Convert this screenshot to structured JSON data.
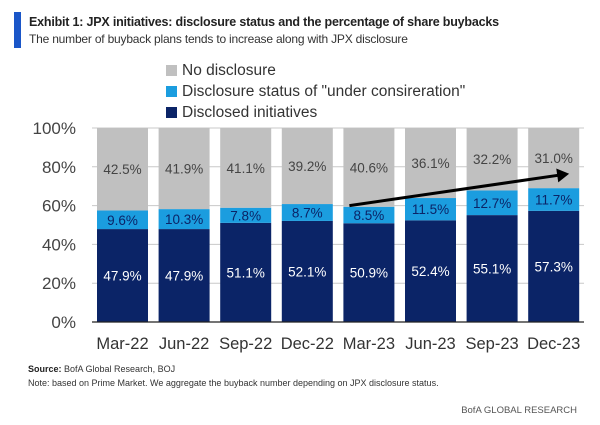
{
  "header": {
    "title": "Exhibit 1: JPX initiatives: disclosure status and the percentage of share buybacks",
    "subtitle": "The number of buyback plans tends to increase along with JPX disclosure",
    "accent_color": "#1a56c8"
  },
  "chart_data": {
    "type": "bar",
    "stacked": true,
    "title": "Exhibit 1: JPX initiatives: disclosure status and the percentage of share buybacks",
    "subtitle": "The number of buyback plans tends to increase along with JPX disclosure",
    "xlabel": "",
    "ylabel": "",
    "categories": [
      "Mar-22",
      "Jun-22",
      "Sep-22",
      "Dec-22",
      "Mar-23",
      "Jun-23",
      "Sep-23",
      "Dec-23"
    ],
    "series": [
      {
        "name": "Disclosed initiatives",
        "color": "#0b2467",
        "label_color": "#ffffff",
        "values": [
          47.9,
          47.9,
          51.1,
          52.1,
          50.9,
          52.4,
          55.1,
          57.3
        ]
      },
      {
        "name": "Disclosure status of \"under consireration\"",
        "color": "#1b9ddf",
        "label_color": "#0b2467",
        "values": [
          9.6,
          10.3,
          7.8,
          8.7,
          8.5,
          11.5,
          12.7,
          11.7
        ]
      },
      {
        "name": "No disclosure",
        "color": "#c0c0c0",
        "label_color": "#444444",
        "values": [
          42.5,
          41.9,
          41.1,
          39.2,
          40.6,
          36.1,
          32.2,
          31.0
        ]
      }
    ],
    "data_labels": [
      [
        "47.9%",
        "47.9%",
        "51.1%",
        "52.1%",
        "50.9%",
        "52.4%",
        "55.1%",
        "57.3%"
      ],
      [
        "9.6%",
        "10.3%",
        "7.8%",
        "8.7%",
        "8.5%",
        "11.5%",
        "12.7%",
        "11.7%"
      ],
      [
        "42.5%",
        "41.9%",
        "41.1%",
        "39.2%",
        "40.6%",
        "36.1%",
        "32.2%",
        "31.0%"
      ]
    ],
    "ylim": [
      0,
      100
    ],
    "yticks": [
      0,
      20,
      40,
      60,
      80,
      100
    ],
    "ytick_labels": [
      "0%",
      "20%",
      "40%",
      "60%",
      "80%",
      "100%"
    ],
    "grid": true,
    "legend": {
      "placement": "top-left",
      "order": [
        "No disclosure",
        "Disclosure status of \"under consireration\"",
        "Disclosed initiatives"
      ]
    },
    "annotations": [
      {
        "type": "arrow",
        "description": "upward trend arrow",
        "from": {
          "category": "Mar-23",
          "y": 60
        },
        "to": {
          "category": "Dec-23",
          "y": 76
        }
      }
    ]
  },
  "legend_labels": {
    "no_disclosure": "No disclosure",
    "under_consideration": "Disclosure status of \"under consireration\"",
    "disclosed": "Disclosed initiatives"
  },
  "footer": {
    "source_label": "Source:",
    "source_text": " BofA Global Research, BOJ",
    "note": "Note: based on Prime Market. We aggregate the buyback number depending on JPX disclosure status.",
    "brand": "BofA GLOBAL RESEARCH"
  }
}
